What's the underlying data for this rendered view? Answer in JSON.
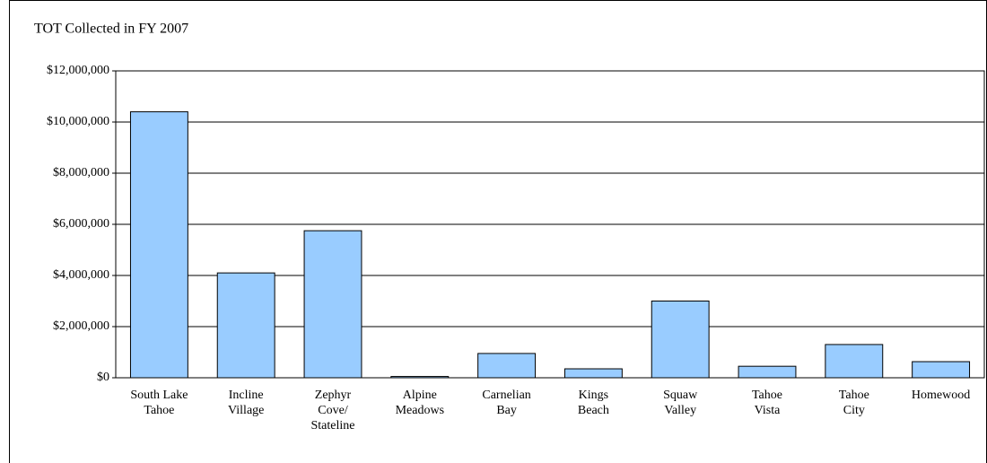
{
  "chart_data": {
    "type": "bar",
    "title": "TOT Collected in FY 2007",
    "categories": [
      "South Lake\nTahoe",
      "Incline\nVillage",
      "Zephyr\nCove/\nStateline",
      "Alpine\nMeadows",
      "Carnelian\nBay",
      "Kings\nBeach",
      "Squaw\nValley",
      "Tahoe\nVista",
      "Tahoe\nCity",
      "Homewood"
    ],
    "values": [
      10400000,
      4100000,
      5750000,
      50000,
      950000,
      350000,
      3000000,
      450000,
      1300000,
      630000
    ],
    "color": "#99ccff",
    "ylim": [
      0,
      12000000
    ],
    "yticks": [
      {
        "value": 0,
        "label": "$0"
      },
      {
        "value": 2000000,
        "label": "$2,000,000"
      },
      {
        "value": 4000000,
        "label": "$4,000,000"
      },
      {
        "value": 6000000,
        "label": "$6,000,000"
      },
      {
        "value": 8000000,
        "label": "$8,000,000"
      },
      {
        "value": 10000000,
        "label": "$10,000,000"
      },
      {
        "value": 12000000,
        "label": "$12,000,000"
      }
    ],
    "grid": true
  }
}
